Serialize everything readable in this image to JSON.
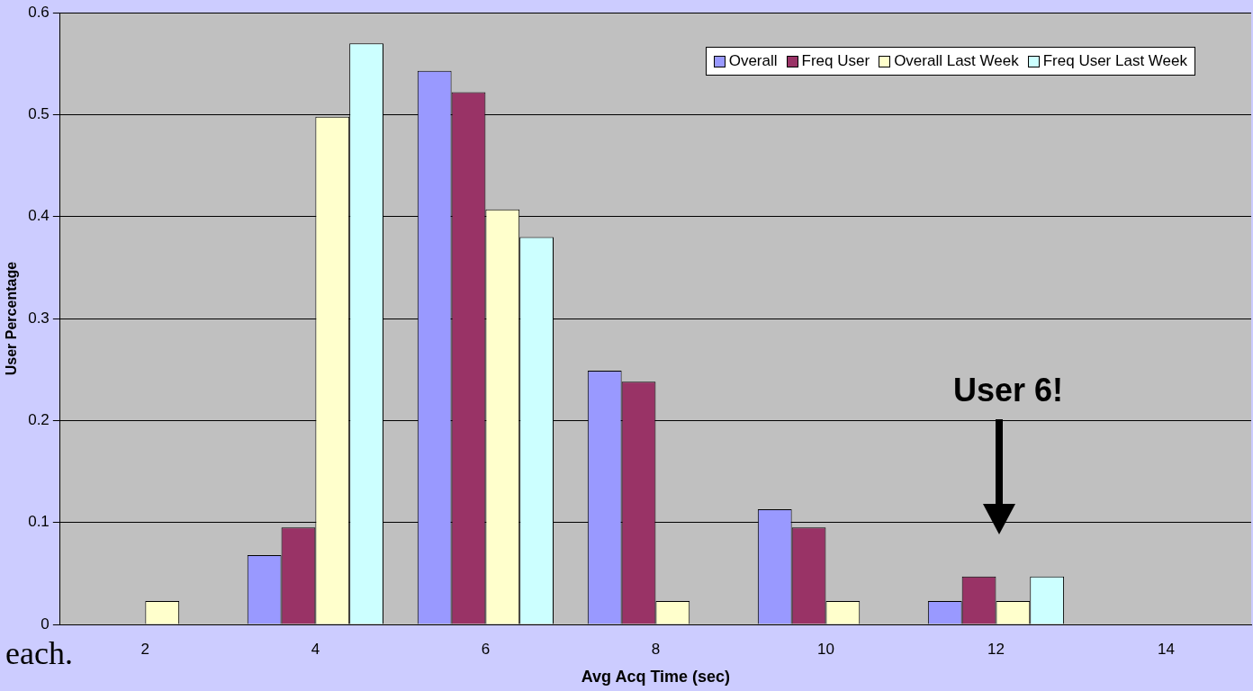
{
  "chart_data": {
    "type": "bar",
    "xlabel": "Avg Acq Time (sec)",
    "ylabel": "User Percentage",
    "categories": [
      "2",
      "4",
      "6",
      "8",
      "10",
      "12",
      "14"
    ],
    "series": [
      {
        "name": "Overall",
        "color": "#9999ff",
        "values": [
          0,
          0.068,
          0.543,
          0.249,
          0.113,
          0.023,
          0
        ]
      },
      {
        "name": "Freq User",
        "color": "#993366",
        "values": [
          0,
          0.095,
          0.522,
          0.238,
          0.095,
          0.047,
          0
        ]
      },
      {
        "name": "Overall Last Week",
        "color": "#ffffcc",
        "values": [
          0.023,
          0.498,
          0.407,
          0.023,
          0.023,
          0.023,
          0
        ]
      },
      {
        "name": "Freq User Last Week",
        "color": "#ccffff",
        "values": [
          0,
          0.57,
          0.38,
          0,
          0,
          0.047,
          0
        ]
      }
    ],
    "ylim": [
      0,
      0.6
    ],
    "yticks": [
      0,
      0.1,
      0.2,
      0.3,
      0.4,
      0.5,
      0.6
    ],
    "grid": "y",
    "legend": "top right",
    "annotations": [
      "User 6!",
      "each."
    ]
  }
}
